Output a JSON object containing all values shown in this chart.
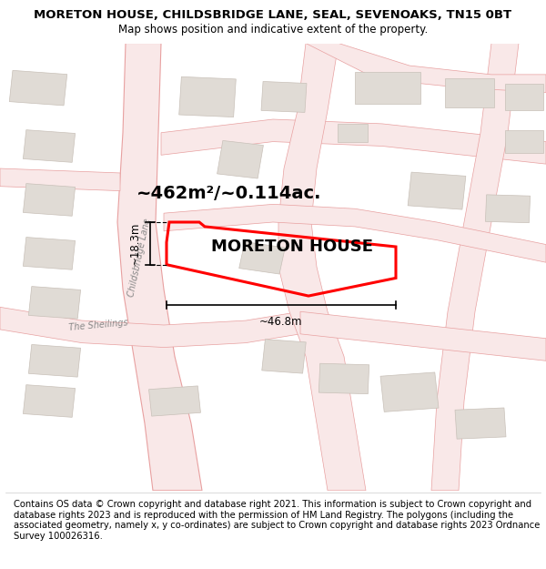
{
  "title": "MORETON HOUSE, CHILDSBRIDGE LANE, SEAL, SEVENOAKS, TN15 0BT",
  "subtitle": "Map shows position and indicative extent of the property.",
  "footer": "Contains OS data © Crown copyright and database right 2021. This information is subject to Crown copyright and database rights 2023 and is reproduced with the permission of HM Land Registry. The polygons (including the associated geometry, namely x, y co-ordinates) are subject to Crown copyright and database rights 2023 Ordnance Survey 100026316.",
  "area_label": "~462m²/~0.114ac.",
  "property_label": "MORETON HOUSE",
  "width_label": "~46.8m",
  "height_label": "~18.3m",
  "map_bg": "#f7f4f0",
  "road_fill": "#f9e8e8",
  "road_edge": "#e8a0a0",
  "building_fill": "#e0dbd5",
  "building_edge": "#c8c0b8",
  "plot_color": "#ff0000",
  "road_label_color": "#888888",
  "fig_width": 6.0,
  "fig_height": 6.25,
  "title_fontsize": 9.5,
  "subtitle_fontsize": 8.5,
  "footer_fontsize": 7.2,
  "area_fontsize": 14,
  "property_fontsize": 13,
  "dim_fontsize": 8.5
}
